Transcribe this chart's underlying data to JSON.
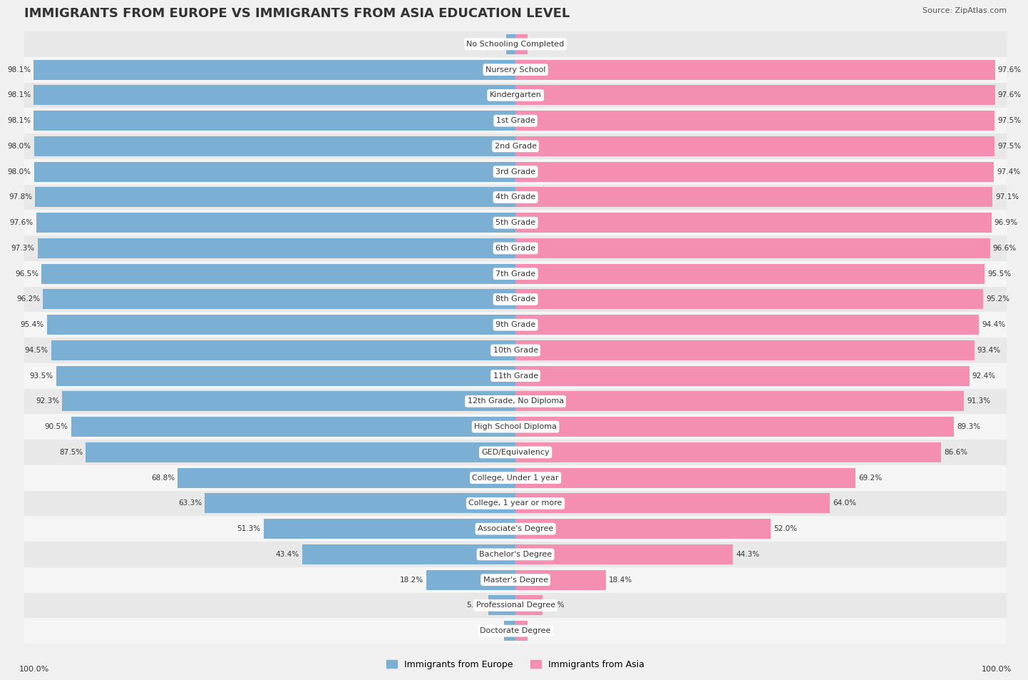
{
  "title": "IMMIGRANTS FROM EUROPE VS IMMIGRANTS FROM ASIA EDUCATION LEVEL",
  "source": "Source: ZipAtlas.com",
  "categories": [
    "No Schooling Completed",
    "Nursery School",
    "Kindergarten",
    "1st Grade",
    "2nd Grade",
    "3rd Grade",
    "4th Grade",
    "5th Grade",
    "6th Grade",
    "7th Grade",
    "8th Grade",
    "9th Grade",
    "10th Grade",
    "11th Grade",
    "12th Grade, No Diploma",
    "High School Diploma",
    "GED/Equivalency",
    "College, Under 1 year",
    "College, 1 year or more",
    "Associate's Degree",
    "Bachelor's Degree",
    "Master's Degree",
    "Professional Degree",
    "Doctorate Degree"
  ],
  "europe_values": [
    1.9,
    98.1,
    98.1,
    98.1,
    98.0,
    98.0,
    97.8,
    97.6,
    97.3,
    96.5,
    96.2,
    95.4,
    94.5,
    93.5,
    92.3,
    90.5,
    87.5,
    68.8,
    63.3,
    51.3,
    43.4,
    18.2,
    5.6,
    2.3
  ],
  "asia_values": [
    2.4,
    97.6,
    97.6,
    97.5,
    97.5,
    97.4,
    97.1,
    96.9,
    96.6,
    95.5,
    95.2,
    94.4,
    93.4,
    92.4,
    91.3,
    89.3,
    86.6,
    69.2,
    64.0,
    52.0,
    44.3,
    18.4,
    5.5,
    2.4
  ],
  "europe_color": "#7bafd4",
  "asia_color": "#f48fb1",
  "background_color": "#f0f0f0",
  "row_color_odd": "#e8e8e8",
  "row_color_even": "#f5f5f5",
  "title_fontsize": 13,
  "label_fontsize": 8,
  "value_fontsize": 7.5,
  "legend_fontsize": 9,
  "axis_label_fontsize": 8
}
